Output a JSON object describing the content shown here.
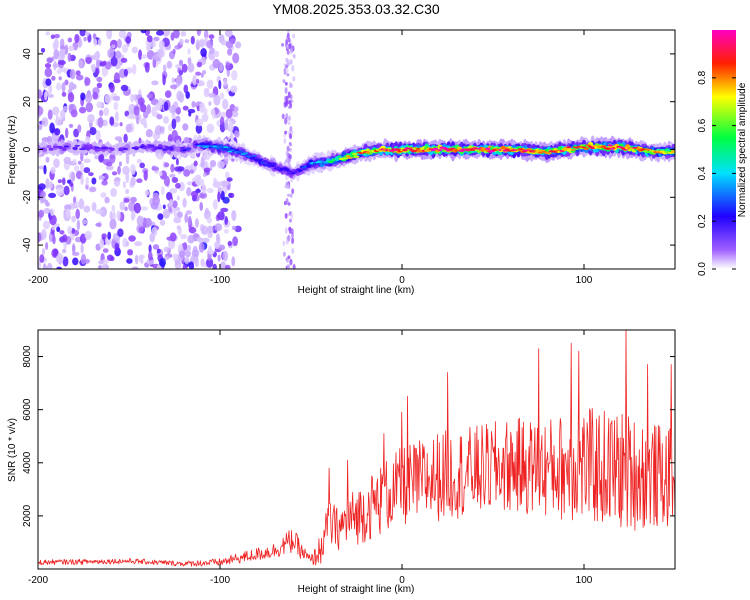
{
  "title": "YM08.2025.353.03.32.C30",
  "chart_data": [
    {
      "type": "heatmap",
      "xlabel": "Height of straight line (km)",
      "ylabel": "Frequency (Hz)",
      "xlim": [
        -200,
        150
      ],
      "ylim": [
        -50,
        50
      ],
      "xticks": [
        -200,
        -100,
        0,
        100
      ],
      "yticks": [
        -40,
        -20,
        0,
        20,
        40
      ],
      "colorbar": {
        "label": "Normalized spectral amplitude",
        "range": [
          0,
          1
        ],
        "ticks": [
          "0.0",
          "0.2",
          "0.4",
          "0.6",
          "0.8"
        ],
        "colormap": [
          "#ffffff",
          "#a060ff",
          "#2000ff",
          "#00e0ff",
          "#00ff40",
          "#ffff00",
          "#ff2000",
          "#ff00c0"
        ]
      },
      "ridge": {
        "x": [
          -200,
          -180,
          -160,
          -140,
          -120,
          -110,
          -100,
          -90,
          -80,
          -70,
          -60,
          -55,
          -50,
          -40,
          -30,
          -20,
          -10,
          0,
          20,
          40,
          60,
          80,
          100,
          120,
          140,
          150
        ],
        "frequency": [
          0,
          1,
          0,
          1,
          0,
          2,
          1,
          -1,
          -4,
          -7,
          -10,
          -8,
          -6,
          -5,
          -3,
          -1,
          0,
          0,
          0,
          0,
          0,
          -1,
          1,
          1,
          -1,
          -1
        ],
        "peak_amplitude": [
          0.25,
          0.3,
          0.28,
          0.3,
          0.35,
          0.45,
          0.5,
          0.45,
          0.4,
          0.35,
          0.3,
          0.35,
          0.45,
          0.55,
          0.75,
          0.85,
          0.9,
          0.95,
          0.98,
          1.0,
          0.95,
          0.9,
          0.85,
          0.95,
          0.8,
          0.75
        ]
      },
      "noise_region_x": [
        -200,
        -100
      ]
    },
    {
      "type": "line",
      "xlabel": "Height of straight line (km)",
      "ylabel": "SNR (10 * v/v)",
      "xlim": [
        -200,
        150
      ],
      "ylim": [
        0,
        9000
      ],
      "xticks": [
        -200,
        -100,
        0,
        100
      ],
      "yticks": [
        2000,
        4000,
        6000,
        8000
      ],
      "series": [
        {
          "name": "SNR",
          "color": "#ee2222",
          "x": [
            -200,
            -150,
            -120,
            -100,
            -90,
            -80,
            -70,
            -65,
            -60,
            -55,
            -50,
            -45,
            -40,
            -35,
            -30,
            -20,
            -10,
            0,
            10,
            20,
            40,
            60,
            80,
            100,
            120,
            140,
            150
          ],
          "median": [
            250,
            300,
            200,
            250,
            400,
            550,
            700,
            900,
            1100,
            650,
            300,
            700,
            1700,
            1500,
            1800,
            2200,
            2700,
            3100,
            3300,
            3500,
            3700,
            3900,
            3800,
            3900,
            3700,
            3500,
            3400
          ],
          "spread": [
            100,
            100,
            100,
            150,
            200,
            250,
            300,
            400,
            500,
            300,
            200,
            600,
            900,
            800,
            1000,
            1200,
            1400,
            1500,
            1600,
            1700,
            1700,
            1800,
            1900,
            2200,
            2300,
            2000,
            1800
          ],
          "peak": [
            [
              -40,
              3800
            ],
            [
              -30,
              4100
            ],
            [
              -10,
              5100
            ],
            [
              0,
              5900
            ],
            [
              3,
              6500
            ],
            [
              25,
              7400
            ],
            [
              75,
              8300
            ],
            [
              93,
              8500
            ],
            [
              97,
              8200
            ],
            [
              123,
              9000
            ],
            [
              135,
              7700
            ],
            [
              148,
              7700
            ]
          ]
        }
      ]
    }
  ]
}
